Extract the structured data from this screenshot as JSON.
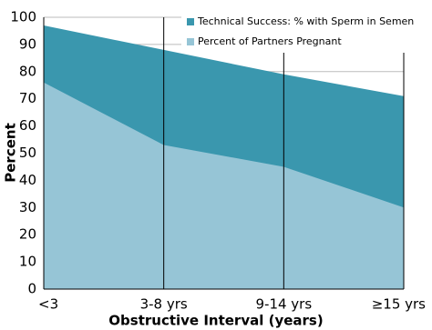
{
  "chart_data": {
    "type": "area",
    "x_label": "Obstructive Interval (years)",
    "y_label": "Percent",
    "categories": [
      "<3",
      "3-8 yrs",
      "9-14 yrs",
      "≥15 yrs"
    ],
    "series": [
      {
        "name": "Technical Success: % with Sperm in Semen",
        "color": "#3a97ae",
        "values": [
          97,
          88,
          79,
          71
        ]
      },
      {
        "name": "Percent of Partners Pregnant",
        "color": "#96c5d6",
        "values": [
          76,
          53,
          45,
          30
        ]
      }
    ],
    "ylim": [
      0,
      100
    ],
    "yticks": [
      0,
      10,
      20,
      30,
      40,
      50,
      60,
      70,
      80,
      90,
      100
    ],
    "grid": true,
    "legend": "upper right"
  }
}
